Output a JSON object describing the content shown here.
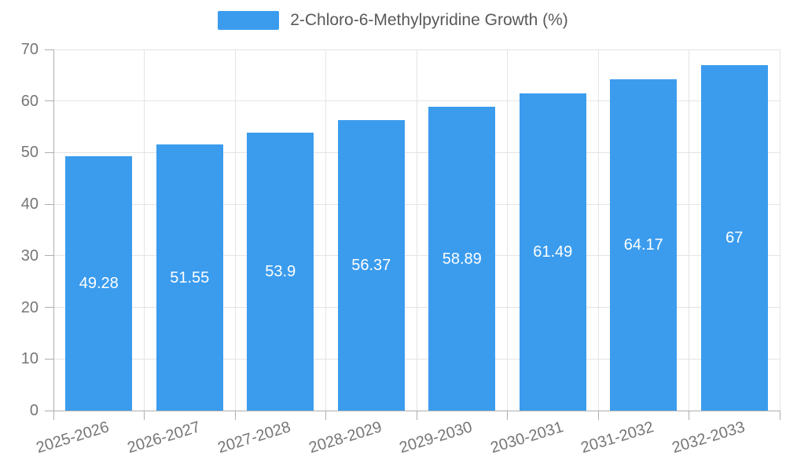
{
  "chart_data": {
    "type": "bar",
    "legend": "2-Chloro-6-Methylpyridine Growth (%)",
    "legend_position": "top-center",
    "categories": [
      "2025-2026",
      "2026-2027",
      "2027-2028",
      "2028-2029",
      "2029-2030",
      "2030-2031",
      "2031-2032",
      "2032-2033"
    ],
    "values": [
      49.28,
      51.55,
      53.9,
      56.37,
      58.89,
      61.49,
      64.17,
      67
    ],
    "value_labels": [
      "49.28",
      "51.55",
      "53.9",
      "56.37",
      "58.89",
      "61.49",
      "64.17",
      "67"
    ],
    "xlabel": "",
    "ylabel": "",
    "ylim": [
      0,
      70
    ],
    "yticks": [
      0,
      10,
      20,
      30,
      40,
      50,
      60,
      70
    ],
    "grid": true,
    "value_label_position": "inside-center",
    "colors": {
      "bar": "#3B9CEE",
      "grid": "#e4e4e4",
      "axis": "#aeaeae",
      "tick": "#aeaeae",
      "axis_label": "#767676",
      "legend_text": "#595959",
      "value_label": "#ffffff",
      "background": "#ffffff"
    }
  }
}
